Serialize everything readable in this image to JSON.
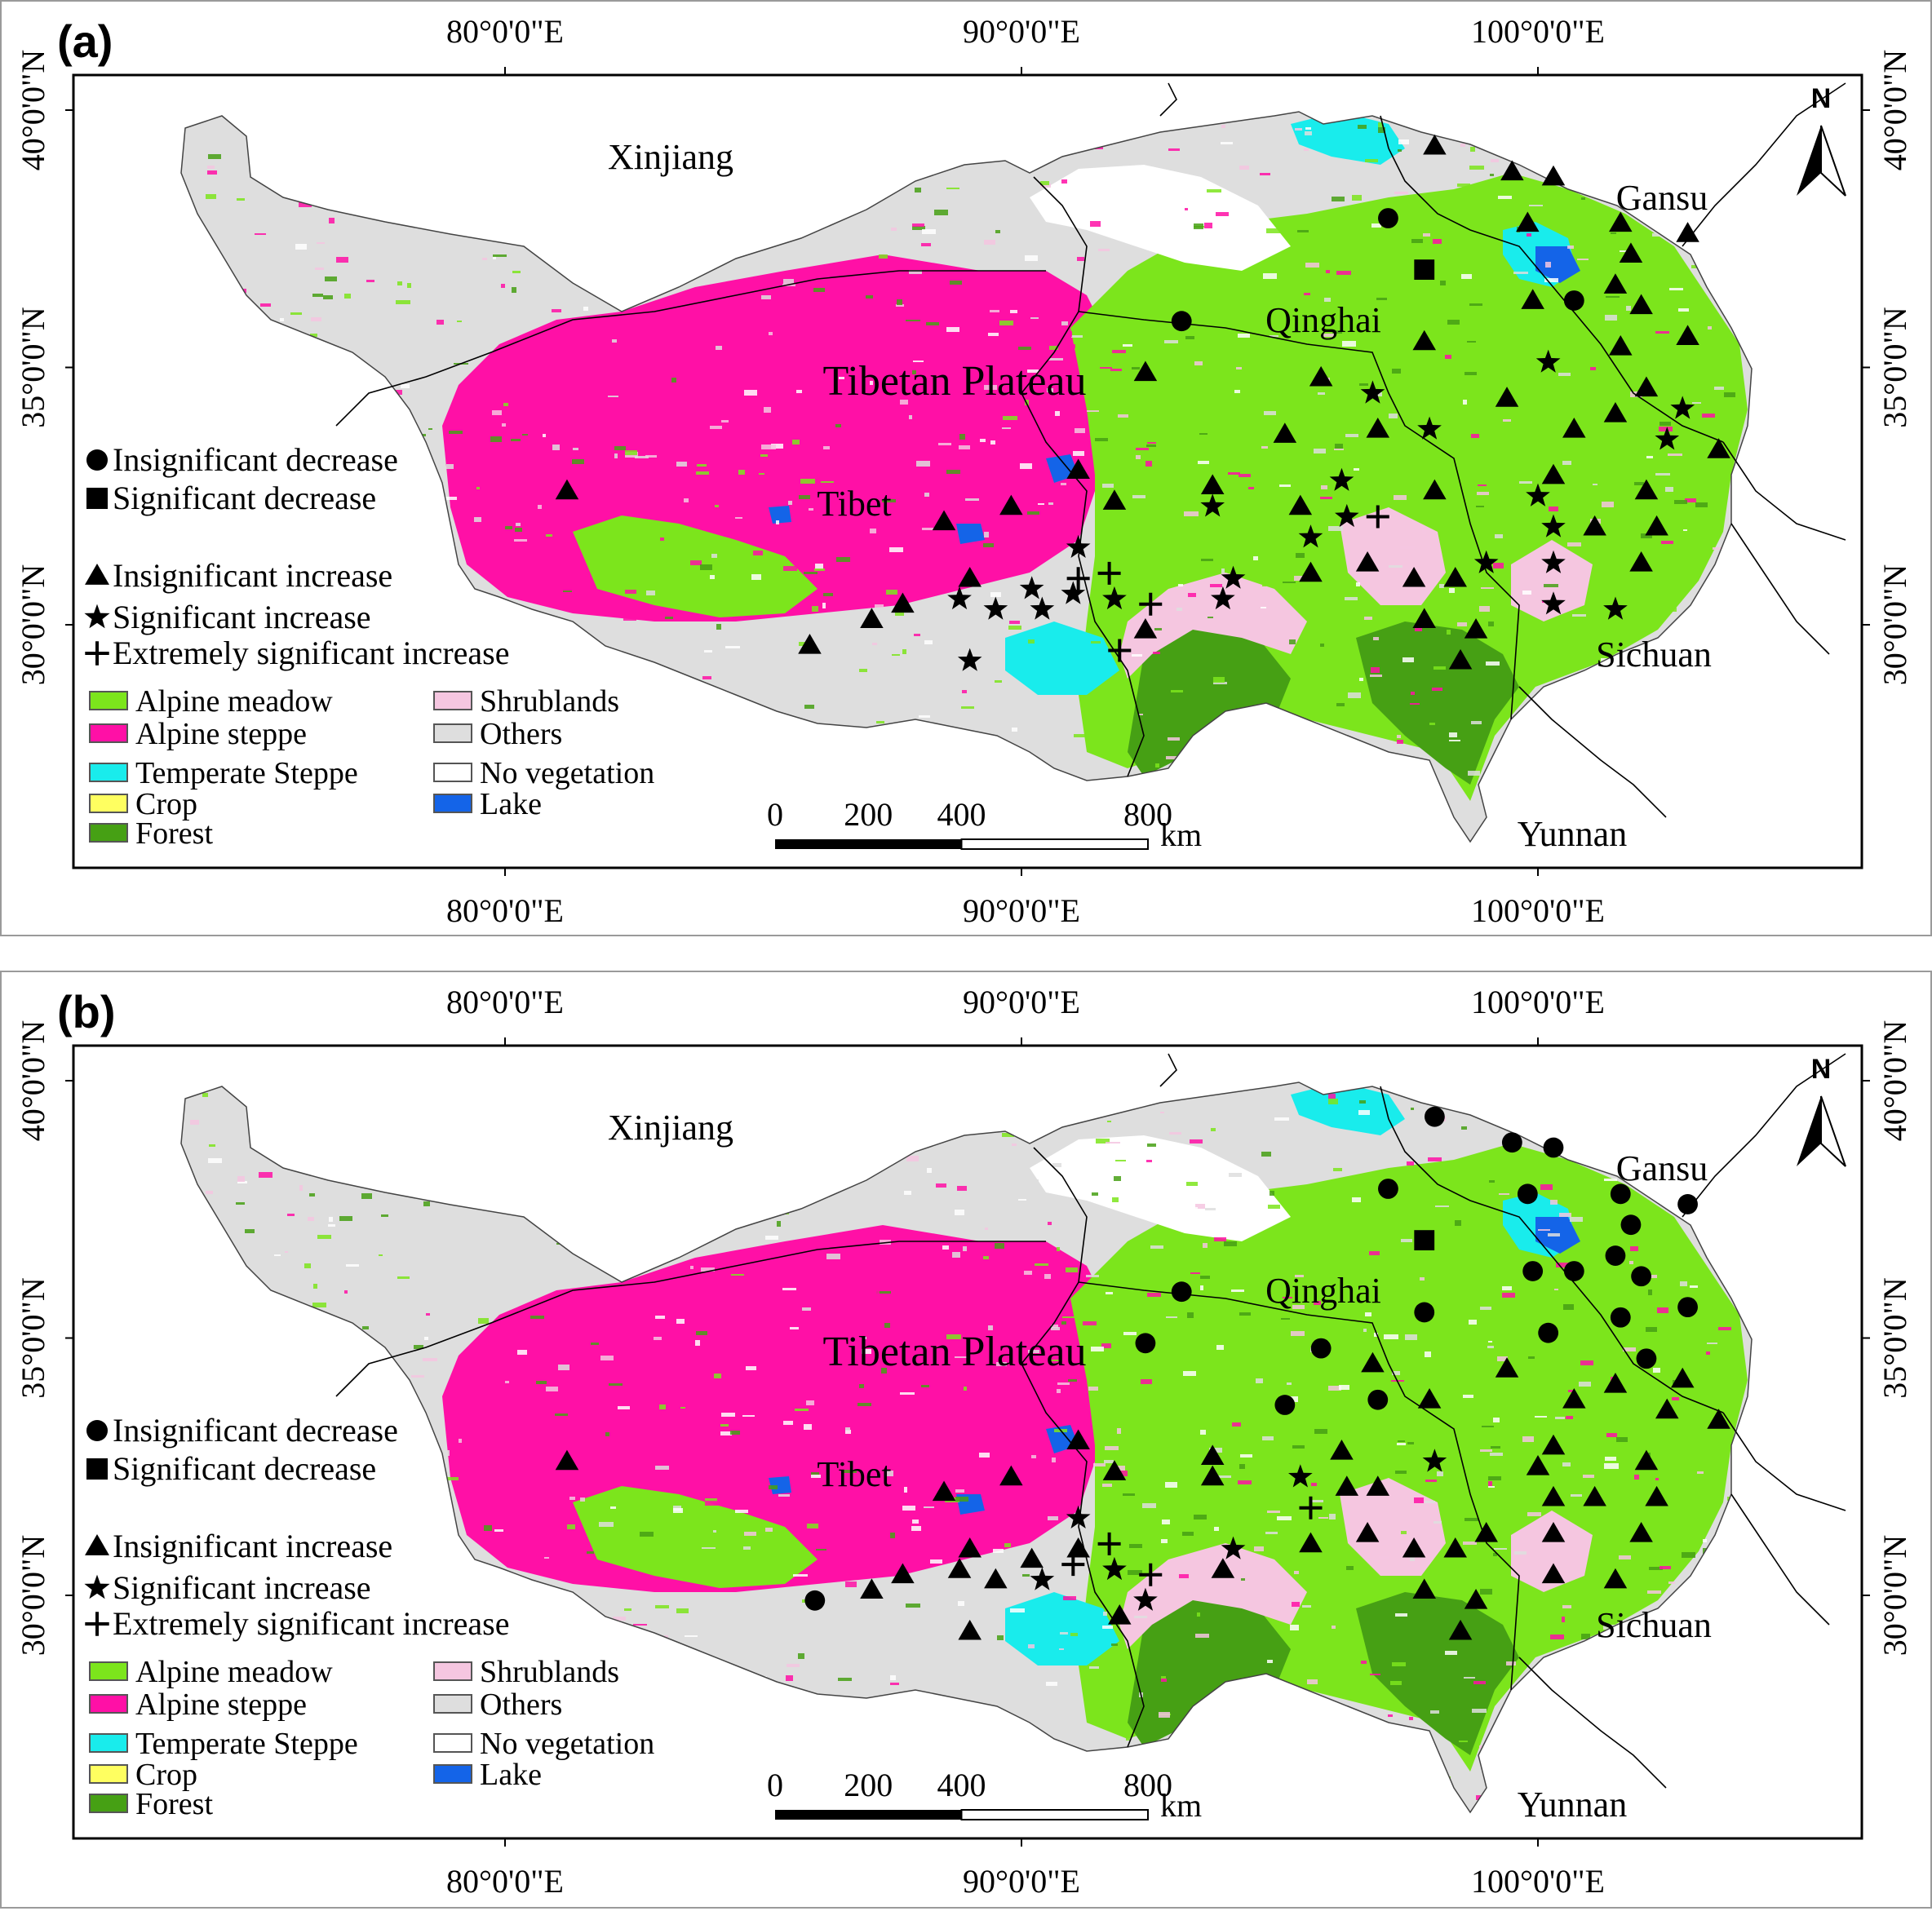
{
  "panels": [
    {
      "id": "a",
      "tag": "(a)",
      "region_labels": {
        "xinjiang": "Xinjiang",
        "gansu": "Gansu",
        "qinghai": "Qinghai",
        "plateau": "Tibetan Plateau",
        "tibet": "Tibet",
        "sichuan": "Sichuan",
        "yunnan": "Yunnan"
      },
      "sites": [
        {
          "lon": 98.0,
          "lat": 39.3,
          "sym": "inc"
        },
        {
          "lon": 99.5,
          "lat": 38.8,
          "sym": "inc"
        },
        {
          "lon": 100.3,
          "lat": 38.7,
          "sym": "inc"
        },
        {
          "lon": 97.1,
          "lat": 37.9,
          "sym": "dec"
        },
        {
          "lon": 99.8,
          "lat": 37.8,
          "sym": "inc"
        },
        {
          "lon": 101.6,
          "lat": 37.8,
          "sym": "inc"
        },
        {
          "lon": 102.9,
          "lat": 37.6,
          "sym": "inc"
        },
        {
          "lon": 101.8,
          "lat": 37.2,
          "sym": "inc"
        },
        {
          "lon": 97.8,
          "lat": 36.9,
          "sym": "sigdec"
        },
        {
          "lon": 101.5,
          "lat": 36.6,
          "sym": "inc"
        },
        {
          "lon": 99.9,
          "lat": 36.3,
          "sym": "inc"
        },
        {
          "lon": 100.7,
          "lat": 36.3,
          "sym": "dec"
        },
        {
          "lon": 102.0,
          "lat": 36.2,
          "sym": "inc"
        },
        {
          "lon": 93.1,
          "lat": 35.9,
          "sym": "dec"
        },
        {
          "lon": 97.8,
          "lat": 35.5,
          "sym": "inc"
        },
        {
          "lon": 101.6,
          "lat": 35.4,
          "sym": "inc"
        },
        {
          "lon": 102.9,
          "lat": 35.6,
          "sym": "inc"
        },
        {
          "lon": 100.2,
          "lat": 35.1,
          "sym": "sig"
        },
        {
          "lon": 92.4,
          "lat": 34.9,
          "sym": "inc"
        },
        {
          "lon": 95.8,
          "lat": 34.8,
          "sym": "inc"
        },
        {
          "lon": 96.8,
          "lat": 34.5,
          "sym": "sig"
        },
        {
          "lon": 99.4,
          "lat": 34.4,
          "sym": "inc"
        },
        {
          "lon": 102.1,
          "lat": 34.6,
          "sym": "inc"
        },
        {
          "lon": 101.5,
          "lat": 34.1,
          "sym": "inc"
        },
        {
          "lon": 102.8,
          "lat": 34.2,
          "sym": "sig"
        },
        {
          "lon": 95.1,
          "lat": 33.7,
          "sym": "inc"
        },
        {
          "lon": 96.9,
          "lat": 33.8,
          "sym": "inc"
        },
        {
          "lon": 97.9,
          "lat": 33.8,
          "sym": "sig"
        },
        {
          "lon": 100.7,
          "lat": 33.8,
          "sym": "inc"
        },
        {
          "lon": 102.5,
          "lat": 33.6,
          "sym": "sig"
        },
        {
          "lon": 103.5,
          "lat": 33.4,
          "sym": "inc"
        },
        {
          "lon": 91.1,
          "lat": 33.0,
          "sym": "inc"
        },
        {
          "lon": 100.3,
          "lat": 32.9,
          "sym": "inc"
        },
        {
          "lon": 96.2,
          "lat": 32.8,
          "sym": "sig"
        },
        {
          "lon": 89.8,
          "lat": 32.3,
          "sym": "inc"
        },
        {
          "lon": 91.8,
          "lat": 32.4,
          "sym": "inc"
        },
        {
          "lon": 93.7,
          "lat": 32.7,
          "sym": "inc"
        },
        {
          "lon": 93.7,
          "lat": 32.3,
          "sym": "sig"
        },
        {
          "lon": 95.4,
          "lat": 32.3,
          "sym": "inc"
        },
        {
          "lon": 98.0,
          "lat": 32.6,
          "sym": "inc"
        },
        {
          "lon": 100.0,
          "lat": 32.5,
          "sym": "sig"
        },
        {
          "lon": 102.1,
          "lat": 32.6,
          "sym": "inc"
        },
        {
          "lon": 96.3,
          "lat": 32.1,
          "sym": "sig"
        },
        {
          "lon": 96.9,
          "lat": 32.1,
          "sym": "plus"
        },
        {
          "lon": 88.5,
          "lat": 32.0,
          "sym": "inc"
        },
        {
          "lon": 95.6,
          "lat": 31.7,
          "sym": "sig"
        },
        {
          "lon": 100.3,
          "lat": 31.9,
          "sym": "sig"
        },
        {
          "lon": 101.1,
          "lat": 31.9,
          "sym": "inc"
        },
        {
          "lon": 102.3,
          "lat": 31.9,
          "sym": "inc"
        },
        {
          "lon": 91.1,
          "lat": 31.5,
          "sym": "sig"
        },
        {
          "lon": 96.7,
          "lat": 31.2,
          "sym": "inc"
        },
        {
          "lon": 99.0,
          "lat": 31.2,
          "sym": "sig"
        },
        {
          "lon": 100.3,
          "lat": 31.2,
          "sym": "sig"
        },
        {
          "lon": 102.0,
          "lat": 31.2,
          "sym": "inc"
        },
        {
          "lon": 95.6,
          "lat": 31.0,
          "sym": "inc"
        },
        {
          "lon": 97.6,
          "lat": 30.9,
          "sym": "inc"
        },
        {
          "lon": 98.4,
          "lat": 30.9,
          "sym": "inc"
        },
        {
          "lon": 94.1,
          "lat": 30.9,
          "sym": "sig"
        },
        {
          "lon": 89.0,
          "lat": 30.9,
          "sym": "inc"
        },
        {
          "lon": 91.1,
          "lat": 30.9,
          "sym": "plus"
        },
        {
          "lon": 91.7,
          "lat": 31.0,
          "sym": "plus"
        },
        {
          "lon": 90.2,
          "lat": 30.7,
          "sym": "sig"
        },
        {
          "lon": 88.8,
          "lat": 30.5,
          "sym": "sig"
        },
        {
          "lon": 91.0,
          "lat": 30.6,
          "sym": "sig"
        },
        {
          "lon": 91.8,
          "lat": 30.5,
          "sym": "sig"
        },
        {
          "lon": 92.5,
          "lat": 30.4,
          "sym": "plus"
        },
        {
          "lon": 93.9,
          "lat": 30.5,
          "sym": "sig"
        },
        {
          "lon": 87.7,
          "lat": 30.4,
          "sym": "inc"
        },
        {
          "lon": 89.5,
          "lat": 30.3,
          "sym": "sig"
        },
        {
          "lon": 90.4,
          "lat": 30.3,
          "sym": "sig"
        },
        {
          "lon": 100.3,
          "lat": 30.4,
          "sym": "sig"
        },
        {
          "lon": 101.5,
          "lat": 30.3,
          "sym": "sig"
        },
        {
          "lon": 87.1,
          "lat": 30.1,
          "sym": "inc"
        },
        {
          "lon": 92.4,
          "lat": 29.9,
          "sym": "inc"
        },
        {
          "lon": 97.8,
          "lat": 30.1,
          "sym": "inc"
        },
        {
          "lon": 98.8,
          "lat": 29.9,
          "sym": "inc"
        },
        {
          "lon": 85.9,
          "lat": 29.6,
          "sym": "inc"
        },
        {
          "lon": 91.9,
          "lat": 29.5,
          "sym": "plus"
        },
        {
          "lon": 89.0,
          "lat": 29.3,
          "sym": "sig"
        },
        {
          "lon": 98.5,
          "lat": 29.3,
          "sym": "inc"
        },
        {
          "lon": 81.2,
          "lat": 32.6,
          "sym": "inc"
        }
      ]
    },
    {
      "id": "b",
      "tag": "(b)",
      "region_labels": {
        "xinjiang": "Xinjiang",
        "gansu": "Gansu",
        "qinghai": "Qinghai",
        "plateau": "Tibetan Plateau",
        "tibet": "Tibet",
        "sichuan": "Sichuan",
        "yunnan": "Yunnan"
      },
      "sites": [
        {
          "lon": 98.0,
          "lat": 39.3,
          "sym": "dec"
        },
        {
          "lon": 99.5,
          "lat": 38.8,
          "sym": "dec"
        },
        {
          "lon": 100.3,
          "lat": 38.7,
          "sym": "dec"
        },
        {
          "lon": 97.1,
          "lat": 37.9,
          "sym": "dec"
        },
        {
          "lon": 99.8,
          "lat": 37.8,
          "sym": "dec"
        },
        {
          "lon": 101.6,
          "lat": 37.8,
          "sym": "dec"
        },
        {
          "lon": 102.9,
          "lat": 37.6,
          "sym": "dec"
        },
        {
          "lon": 101.8,
          "lat": 37.2,
          "sym": "dec"
        },
        {
          "lon": 97.8,
          "lat": 36.9,
          "sym": "sigdec"
        },
        {
          "lon": 101.5,
          "lat": 36.6,
          "sym": "dec"
        },
        {
          "lon": 99.9,
          "lat": 36.3,
          "sym": "dec"
        },
        {
          "lon": 100.7,
          "lat": 36.3,
          "sym": "dec"
        },
        {
          "lon": 102.0,
          "lat": 36.2,
          "sym": "dec"
        },
        {
          "lon": 93.1,
          "lat": 35.9,
          "sym": "dec"
        },
        {
          "lon": 97.8,
          "lat": 35.5,
          "sym": "dec"
        },
        {
          "lon": 101.6,
          "lat": 35.4,
          "sym": "dec"
        },
        {
          "lon": 102.9,
          "lat": 35.6,
          "sym": "dec"
        },
        {
          "lon": 100.2,
          "lat": 35.1,
          "sym": "dec"
        },
        {
          "lon": 92.4,
          "lat": 34.9,
          "sym": "dec"
        },
        {
          "lon": 95.8,
          "lat": 34.8,
          "sym": "dec"
        },
        {
          "lon": 96.8,
          "lat": 34.5,
          "sym": "inc"
        },
        {
          "lon": 99.4,
          "lat": 34.4,
          "sym": "inc"
        },
        {
          "lon": 102.1,
          "lat": 34.6,
          "sym": "dec"
        },
        {
          "lon": 101.5,
          "lat": 34.1,
          "sym": "inc"
        },
        {
          "lon": 102.8,
          "lat": 34.2,
          "sym": "inc"
        },
        {
          "lon": 95.1,
          "lat": 33.7,
          "sym": "dec"
        },
        {
          "lon": 96.9,
          "lat": 33.8,
          "sym": "dec"
        },
        {
          "lon": 97.9,
          "lat": 33.8,
          "sym": "inc"
        },
        {
          "lon": 100.7,
          "lat": 33.8,
          "sym": "inc"
        },
        {
          "lon": 102.5,
          "lat": 33.6,
          "sym": "inc"
        },
        {
          "lon": 103.5,
          "lat": 33.4,
          "sym": "inc"
        },
        {
          "lon": 91.1,
          "lat": 33.0,
          "sym": "inc"
        },
        {
          "lon": 100.3,
          "lat": 32.9,
          "sym": "inc"
        },
        {
          "lon": 96.2,
          "lat": 32.8,
          "sym": "inc"
        },
        {
          "lon": 89.8,
          "lat": 32.3,
          "sym": "inc"
        },
        {
          "lon": 91.8,
          "lat": 32.4,
          "sym": "inc"
        },
        {
          "lon": 93.7,
          "lat": 32.7,
          "sym": "inc"
        },
        {
          "lon": 93.7,
          "lat": 32.3,
          "sym": "inc"
        },
        {
          "lon": 95.4,
          "lat": 32.3,
          "sym": "sig"
        },
        {
          "lon": 98.0,
          "lat": 32.6,
          "sym": "sig"
        },
        {
          "lon": 100.0,
          "lat": 32.5,
          "sym": "inc"
        },
        {
          "lon": 102.1,
          "lat": 32.6,
          "sym": "inc"
        },
        {
          "lon": 96.3,
          "lat": 32.1,
          "sym": "inc"
        },
        {
          "lon": 96.9,
          "lat": 32.1,
          "sym": "inc"
        },
        {
          "lon": 88.5,
          "lat": 32.0,
          "sym": "inc"
        },
        {
          "lon": 95.6,
          "lat": 31.7,
          "sym": "plus"
        },
        {
          "lon": 100.3,
          "lat": 31.9,
          "sym": "inc"
        },
        {
          "lon": 101.1,
          "lat": 31.9,
          "sym": "inc"
        },
        {
          "lon": 102.3,
          "lat": 31.9,
          "sym": "inc"
        },
        {
          "lon": 91.1,
          "lat": 31.5,
          "sym": "sig"
        },
        {
          "lon": 96.7,
          "lat": 31.2,
          "sym": "inc"
        },
        {
          "lon": 99.0,
          "lat": 31.2,
          "sym": "inc"
        },
        {
          "lon": 100.3,
          "lat": 31.2,
          "sym": "inc"
        },
        {
          "lon": 102.0,
          "lat": 31.2,
          "sym": "inc"
        },
        {
          "lon": 95.6,
          "lat": 31.0,
          "sym": "inc"
        },
        {
          "lon": 97.6,
          "lat": 30.9,
          "sym": "inc"
        },
        {
          "lon": 98.4,
          "lat": 30.9,
          "sym": "inc"
        },
        {
          "lon": 94.1,
          "lat": 30.9,
          "sym": "sig"
        },
        {
          "lon": 89.0,
          "lat": 30.9,
          "sym": "inc"
        },
        {
          "lon": 91.1,
          "lat": 30.9,
          "sym": "inc"
        },
        {
          "lon": 91.7,
          "lat": 31.0,
          "sym": "plus"
        },
        {
          "lon": 90.2,
          "lat": 30.7,
          "sym": "inc"
        },
        {
          "lon": 88.8,
          "lat": 30.5,
          "sym": "inc"
        },
        {
          "lon": 91.0,
          "lat": 30.6,
          "sym": "plus"
        },
        {
          "lon": 91.8,
          "lat": 30.5,
          "sym": "sig"
        },
        {
          "lon": 92.5,
          "lat": 30.4,
          "sym": "plus"
        },
        {
          "lon": 93.9,
          "lat": 30.5,
          "sym": "inc"
        },
        {
          "lon": 87.7,
          "lat": 30.4,
          "sym": "inc"
        },
        {
          "lon": 89.5,
          "lat": 30.3,
          "sym": "inc"
        },
        {
          "lon": 90.4,
          "lat": 30.3,
          "sym": "sig"
        },
        {
          "lon": 100.3,
          "lat": 30.4,
          "sym": "inc"
        },
        {
          "lon": 101.5,
          "lat": 30.3,
          "sym": "inc"
        },
        {
          "lon": 87.1,
          "lat": 30.1,
          "sym": "inc"
        },
        {
          "lon": 92.4,
          "lat": 29.9,
          "sym": "sig"
        },
        {
          "lon": 97.8,
          "lat": 30.1,
          "sym": "inc"
        },
        {
          "lon": 98.8,
          "lat": 29.9,
          "sym": "inc"
        },
        {
          "lon": 86.0,
          "lat": 29.9,
          "sym": "dec"
        },
        {
          "lon": 91.9,
          "lat": 29.6,
          "sym": "inc"
        },
        {
          "lon": 89.0,
          "lat": 29.3,
          "sym": "inc"
        },
        {
          "lon": 98.5,
          "lat": 29.3,
          "sym": "inc"
        },
        {
          "lon": 81.2,
          "lat": 32.6,
          "sym": "inc"
        }
      ]
    }
  ],
  "axes": {
    "top_ticks": [
      "80°0'0\"E",
      "90°0'0\"E",
      "100°0'0\"E"
    ],
    "bottom_ticks": [
      "80°0'0\"E",
      "90°0'0\"E",
      "100°0'0\"E"
    ],
    "left_ticks": [
      "40°0'0\"N",
      "35°0'0\"N",
      "30°0'0\"N"
    ],
    "right_ticks": [
      "40°0'0\"N",
      "35°0'0\"N",
      "30°0'0\"N"
    ],
    "lon_values": [
      80,
      90,
      100
    ],
    "lat_values": [
      40,
      35,
      30
    ]
  },
  "north_label": "N",
  "scale_bar": {
    "labels": [
      "0",
      "200",
      "400",
      "800"
    ],
    "values": [
      0,
      200,
      400,
      800
    ],
    "unit": "km"
  },
  "trend_legend": [
    {
      "sym": "dec",
      "label": "Insignificant decrease"
    },
    {
      "sym": "sigdec",
      "label": "Significant decrease"
    },
    {
      "sym": "inc",
      "label": "Insignificant increase"
    },
    {
      "sym": "sig",
      "label": "Significant increase"
    },
    {
      "sym": "plus",
      "label": "Extremely significant increase"
    }
  ],
  "landcover_legend": [
    {
      "label": "Alpine meadow",
      "color": "#7ce51c"
    },
    {
      "label": "Shrublands",
      "color": "#f5c6e0"
    },
    {
      "label": "Alpine steppe",
      "color": "#ff10a6"
    },
    {
      "label": "Others",
      "color": "#dedede"
    },
    {
      "label": "Temperate Steppe",
      "color": "#19ecec"
    },
    {
      "label": "No vegetation",
      "color": "#ffffff"
    },
    {
      "label": "Crop",
      "color": "#ffff60"
    },
    {
      "label": "Lake",
      "color": "#1464e8"
    },
    {
      "label": "Forest",
      "color": "#46a014"
    }
  ]
}
